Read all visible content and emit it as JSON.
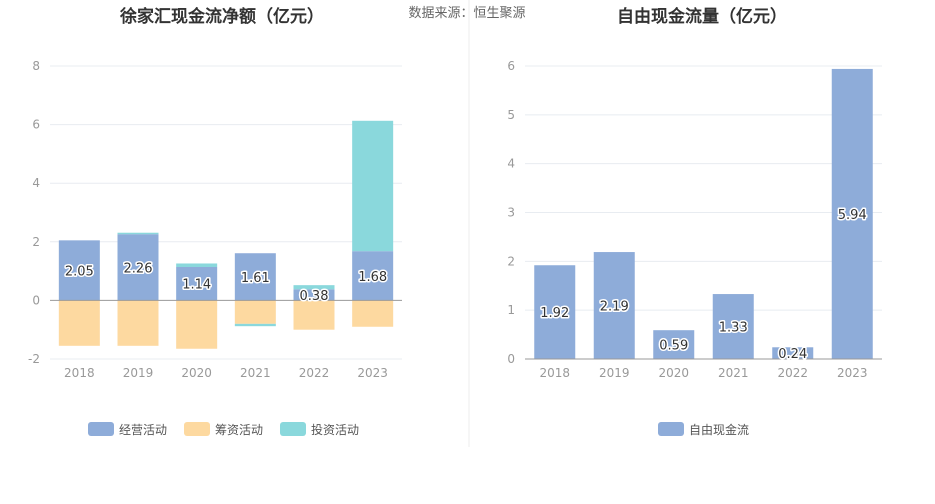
{
  "source": "数据来源：恒生聚源",
  "chart_data": [
    {
      "type": "bar",
      "stacked": true,
      "title": "徐家汇现金流净额（亿元）",
      "categories": [
        "2018",
        "2019",
        "2020",
        "2021",
        "2022",
        "2023"
      ],
      "ylim": [
        -2,
        8
      ],
      "yticks": [
        -2,
        0,
        2,
        4,
        6,
        8
      ],
      "grid": true,
      "legend": "bottom",
      "series": [
        {
          "name": "经营活动",
          "color": "#8eacd9",
          "values": [
            2.05,
            2.26,
            1.14,
            1.61,
            0.38,
            1.68
          ],
          "labels": [
            "2.05",
            "2.26",
            "1.14",
            "1.61",
            "0.38",
            "1.68"
          ]
        },
        {
          "name": "筹资活动",
          "color": "#fdd9a0",
          "values": [
            -1.55,
            -1.55,
            -1.65,
            -0.8,
            -1.0,
            -0.9
          ]
        },
        {
          "name": "投资活动",
          "color": "#8ad8dc",
          "values": [
            0.0,
            0.05,
            0.12,
            -0.08,
            0.14,
            4.45
          ]
        }
      ]
    },
    {
      "type": "bar",
      "title": "自由现金流量（亿元）",
      "categories": [
        "2018",
        "2019",
        "2020",
        "2021",
        "2022",
        "2023"
      ],
      "ylim": [
        0,
        6
      ],
      "yticks": [
        0,
        1,
        2,
        3,
        4,
        5,
        6
      ],
      "grid": true,
      "legend": "bottom",
      "series": [
        {
          "name": "自由现金流",
          "color": "#8eacd9",
          "values": [
            1.92,
            2.19,
            0.59,
            1.33,
            0.24,
            5.94
          ],
          "labels": [
            "1.92",
            "2.19",
            "0.59",
            "1.33",
            "0.24",
            "5.94"
          ]
        }
      ]
    }
  ]
}
